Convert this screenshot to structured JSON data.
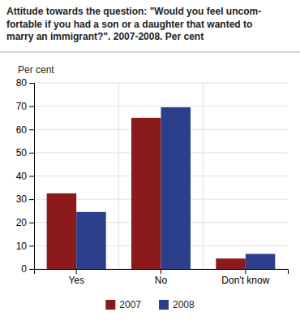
{
  "chart_data": {
    "type": "bar",
    "title": "Attitude towards the question: \"Would you feel uncom-\nfortable if you had a son or a daughter that wanted to\nmarry an immigrant?\". 2007-2008. Per cent",
    "y_label": "Per cent",
    "categories": [
      "Yes",
      "No",
      "Don't know"
    ],
    "series": [
      {
        "name": "2007",
        "color": "#8B1A1A",
        "values": [
          32.5,
          65.0,
          4.5
        ]
      },
      {
        "name": "2008",
        "color": "#2B3F8B",
        "values": [
          24.5,
          69.5,
          6.5
        ]
      }
    ],
    "ylim": [
      0,
      80
    ],
    "yticks": [
      0,
      10,
      20,
      30,
      40,
      50,
      60,
      70,
      80
    ],
    "grid": true,
    "legend": "bottom"
  }
}
